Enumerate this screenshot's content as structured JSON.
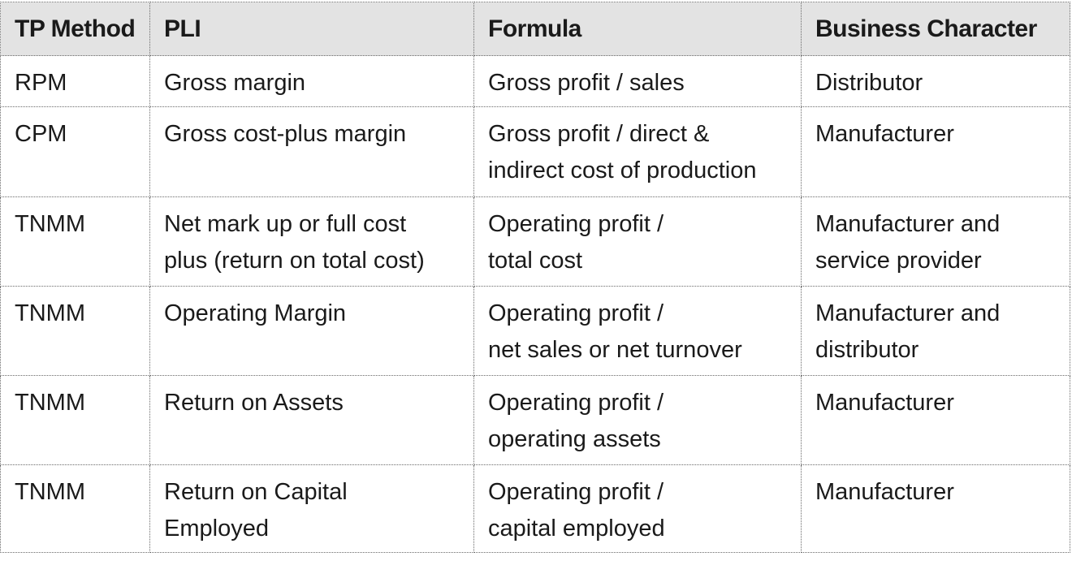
{
  "table": {
    "headers": {
      "tp_method": "TP Method",
      "pli": "PLI",
      "formula": "Formula",
      "business_character": "Business Character"
    },
    "rows": [
      {
        "tp_method": "RPM",
        "pli": "Gross margin",
        "formula": "Gross profit / sales",
        "business_character": "Distributor"
      },
      {
        "tp_method": "CPM",
        "pli": "Gross cost-plus margin",
        "formula": "Gross profit / direct &\nindirect cost of production",
        "business_character": "Manufacturer"
      },
      {
        "tp_method": "TNMM",
        "pli": "Net mark up or full cost\nplus (return on total cost)",
        "formula": "Operating profit /\ntotal cost",
        "business_character": "Manufacturer and\nservice provider"
      },
      {
        "tp_method": "TNMM",
        "pli": "Operating Margin",
        "formula": "Operating profit /\nnet sales or net turnover",
        "business_character": "Manufacturer and\ndistributor"
      },
      {
        "tp_method": "TNMM",
        "pli": "Return on Assets",
        "formula": "Operating profit /\noperating assets",
        "business_character": "Manufacturer"
      },
      {
        "tp_method": "TNMM",
        "pli": "Return on Capital\nEmployed",
        "formula": "Operating profit /\ncapital employed",
        "business_character": "Manufacturer"
      }
    ]
  },
  "colors": {
    "header_background": "#e3e3e3",
    "border": "#6a6a6a",
    "text": "#1a1a1a"
  }
}
